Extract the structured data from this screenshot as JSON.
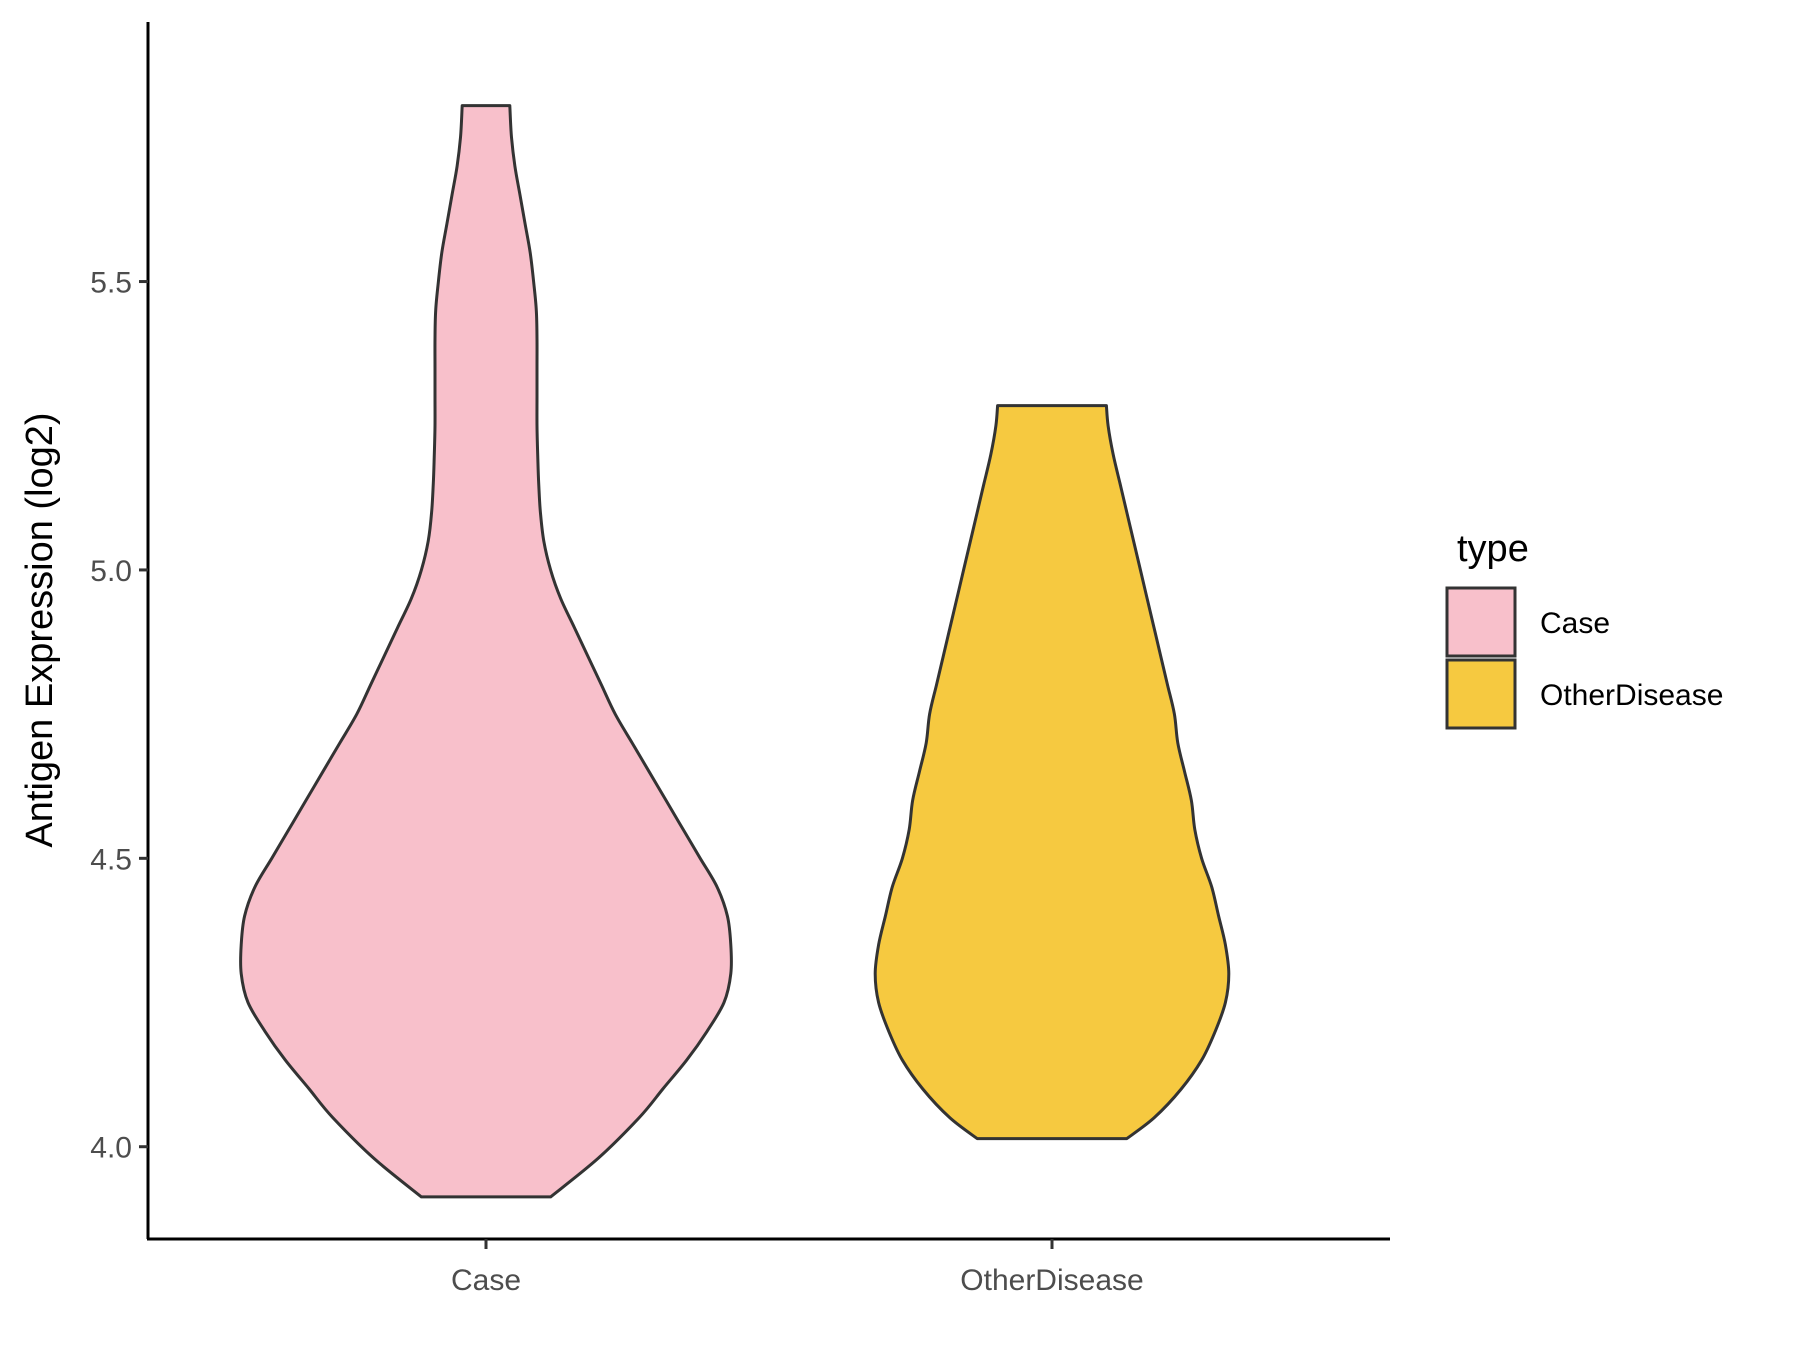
{
  "chart_data": {
    "type": "violin",
    "title": "",
    "xlabel": "",
    "ylabel": "Antigen Expression (log2)",
    "ylim": [
      3.84,
      5.95
    ],
    "yticks": [
      4.0,
      4.5,
      5.0,
      5.5
    ],
    "ytick_labels": [
      "4.0",
      "4.5",
      "5.0",
      "5.5"
    ],
    "categories": [
      "Case",
      "OtherDisease"
    ],
    "grid": false,
    "legend": {
      "title": "type",
      "placement": "right",
      "entries": [
        "Case",
        "OtherDisease"
      ]
    },
    "series": [
      {
        "name": "Case",
        "color": "#F8C0CB",
        "min": 3.913,
        "max": 5.805,
        "density_profile": [
          [
            3.913,
            0.19
          ],
          [
            3.98,
            0.33
          ],
          [
            4.05,
            0.45
          ],
          [
            4.1,
            0.52
          ],
          [
            4.15,
            0.59
          ],
          [
            4.2,
            0.65
          ],
          [
            4.25,
            0.7
          ],
          [
            4.3,
            0.72
          ],
          [
            4.35,
            0.72
          ],
          [
            4.4,
            0.71
          ],
          [
            4.45,
            0.68
          ],
          [
            4.5,
            0.63
          ],
          [
            4.55,
            0.58
          ],
          [
            4.6,
            0.53
          ],
          [
            4.65,
            0.48
          ],
          [
            4.7,
            0.43
          ],
          [
            4.75,
            0.38
          ],
          [
            4.8,
            0.34
          ],
          [
            4.85,
            0.3
          ],
          [
            4.9,
            0.26
          ],
          [
            4.95,
            0.22
          ],
          [
            5.0,
            0.19
          ],
          [
            5.05,
            0.17
          ],
          [
            5.1,
            0.16
          ],
          [
            5.15,
            0.155
          ],
          [
            5.2,
            0.152
          ],
          [
            5.25,
            0.15
          ],
          [
            5.3,
            0.15
          ],
          [
            5.35,
            0.15
          ],
          [
            5.4,
            0.15
          ],
          [
            5.45,
            0.148
          ],
          [
            5.5,
            0.14
          ],
          [
            5.55,
            0.13
          ],
          [
            5.6,
            0.115
          ],
          [
            5.65,
            0.1
          ],
          [
            5.7,
            0.085
          ],
          [
            5.75,
            0.075
          ],
          [
            5.805,
            0.07
          ]
        ]
      },
      {
        "name": "OtherDisease",
        "color": "#F6C940",
        "min": 4.014,
        "max": 5.285,
        "density_profile": [
          [
            4.014,
            0.22
          ],
          [
            4.05,
            0.3
          ],
          [
            4.1,
            0.38
          ],
          [
            4.15,
            0.44
          ],
          [
            4.2,
            0.48
          ],
          [
            4.25,
            0.51
          ],
          [
            4.3,
            0.52
          ],
          [
            4.35,
            0.51
          ],
          [
            4.4,
            0.49
          ],
          [
            4.45,
            0.47
          ],
          [
            4.5,
            0.44
          ],
          [
            4.55,
            0.42
          ],
          [
            4.6,
            0.41
          ],
          [
            4.65,
            0.39
          ],
          [
            4.7,
            0.37
          ],
          [
            4.75,
            0.36
          ],
          [
            4.8,
            0.34
          ],
          [
            4.85,
            0.32
          ],
          [
            4.9,
            0.3
          ],
          [
            4.95,
            0.28
          ],
          [
            5.0,
            0.26
          ],
          [
            5.05,
            0.24
          ],
          [
            5.1,
            0.22
          ],
          [
            5.15,
            0.2
          ],
          [
            5.2,
            0.18
          ],
          [
            5.25,
            0.165
          ],
          [
            5.285,
            0.16
          ]
        ]
      }
    ]
  },
  "colors": {
    "outline": "#333333",
    "axis": "#000000",
    "tick_text": "#4d4d4d"
  }
}
